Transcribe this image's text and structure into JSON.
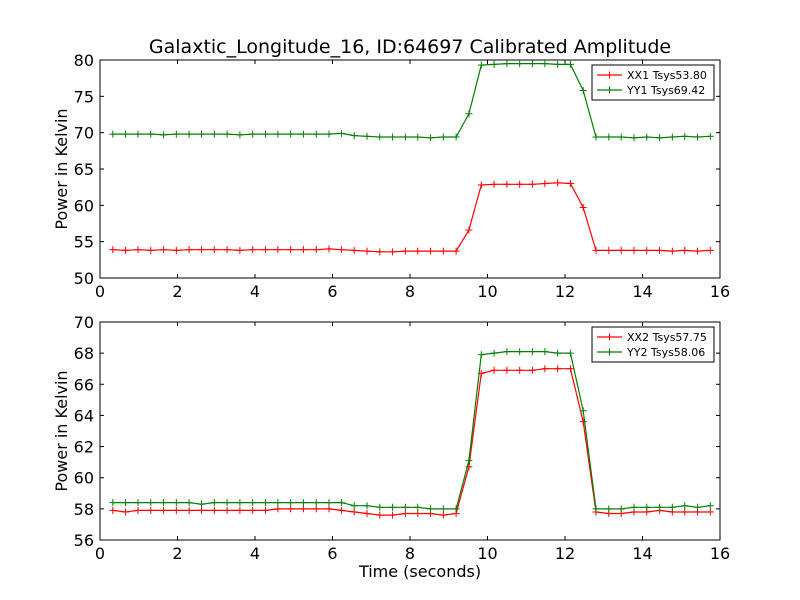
{
  "title": "Galaxtic_Longitude_16, ID:64697 Calibrated Amplitude",
  "colors": {
    "red": "#ff0000",
    "green": "#008000",
    "frame": "#000000"
  },
  "chart_data": [
    {
      "type": "line",
      "title": "Galaxtic_Longitude_16, ID:64697 Calibrated Amplitude",
      "xlabel": "",
      "ylabel": "Power in Kelvin",
      "xlim": [
        0,
        16
      ],
      "ylim": [
        50,
        80
      ],
      "xticks": [
        "0",
        "2",
        "4",
        "6",
        "8",
        "10",
        "12",
        "14",
        "16"
      ],
      "yticks": [
        "50",
        "55",
        "60",
        "65",
        "70",
        "75",
        "80"
      ],
      "grid": false,
      "legend_position": "top-right",
      "x": [
        0.33,
        0.66,
        0.98,
        1.31,
        1.64,
        1.97,
        2.3,
        2.62,
        2.95,
        3.28,
        3.61,
        3.94,
        4.27,
        4.59,
        4.92,
        5.25,
        5.58,
        5.91,
        6.23,
        6.56,
        6.89,
        7.22,
        7.55,
        7.88,
        8.2,
        8.53,
        8.86,
        9.19,
        9.52,
        9.84,
        10.17,
        10.5,
        10.83,
        11.16,
        11.48,
        11.81,
        12.14,
        12.47,
        12.8,
        13.13,
        13.45,
        13.78,
        14.11,
        14.44,
        14.77,
        15.09,
        15.42,
        15.75
      ],
      "series": [
        {
          "name": "XX1 Tsys53.80",
          "color": "#ff0000",
          "values": [
            53.9,
            53.8,
            53.9,
            53.8,
            53.9,
            53.8,
            53.9,
            53.9,
            53.9,
            53.9,
            53.8,
            53.9,
            53.9,
            53.9,
            53.9,
            53.9,
            53.9,
            54.0,
            53.9,
            53.8,
            53.7,
            53.6,
            53.6,
            53.7,
            53.7,
            53.7,
            53.7,
            53.7,
            56.6,
            62.8,
            62.9,
            62.9,
            62.9,
            62.9,
            63.0,
            63.1,
            63.0,
            59.7,
            53.8,
            53.8,
            53.8,
            53.8,
            53.8,
            53.8,
            53.7,
            53.8,
            53.7,
            53.8
          ]
        },
        {
          "name": "YY1 Tsys69.42",
          "color": "#008000",
          "values": [
            69.8,
            69.8,
            69.8,
            69.8,
            69.7,
            69.8,
            69.8,
            69.8,
            69.8,
            69.8,
            69.7,
            69.8,
            69.8,
            69.8,
            69.8,
            69.8,
            69.8,
            69.8,
            69.9,
            69.6,
            69.5,
            69.4,
            69.4,
            69.4,
            69.4,
            69.3,
            69.4,
            69.4,
            72.6,
            79.3,
            79.4,
            79.5,
            79.5,
            79.5,
            79.5,
            79.4,
            79.4,
            75.8,
            69.4,
            69.4,
            69.4,
            69.3,
            69.4,
            69.3,
            69.4,
            69.5,
            69.4,
            69.5
          ]
        }
      ]
    },
    {
      "type": "line",
      "title": "",
      "xlabel": "Time (seconds)",
      "ylabel": "Power in Kelvin",
      "xlim": [
        0,
        16
      ],
      "ylim": [
        56,
        70
      ],
      "xticks": [
        "0",
        "2",
        "4",
        "6",
        "8",
        "10",
        "12",
        "14",
        "16"
      ],
      "yticks": [
        "56",
        "58",
        "60",
        "62",
        "64",
        "66",
        "68",
        "70"
      ],
      "grid": false,
      "legend_position": "top-right",
      "x": [
        0.33,
        0.66,
        0.98,
        1.31,
        1.64,
        1.97,
        2.3,
        2.62,
        2.95,
        3.28,
        3.61,
        3.94,
        4.27,
        4.59,
        4.92,
        5.25,
        5.58,
        5.91,
        6.23,
        6.56,
        6.89,
        7.22,
        7.55,
        7.88,
        8.2,
        8.53,
        8.86,
        9.19,
        9.52,
        9.84,
        10.17,
        10.5,
        10.83,
        11.16,
        11.48,
        11.81,
        12.14,
        12.47,
        12.8,
        13.13,
        13.45,
        13.78,
        14.11,
        14.44,
        14.77,
        15.09,
        15.42,
        15.75
      ],
      "series": [
        {
          "name": "XX2 Tsys57.75",
          "color": "#ff0000",
          "values": [
            57.9,
            57.8,
            57.9,
            57.9,
            57.9,
            57.9,
            57.9,
            57.9,
            57.9,
            57.9,
            57.9,
            57.9,
            57.9,
            58.0,
            58.0,
            58.0,
            58.0,
            58.0,
            57.9,
            57.8,
            57.7,
            57.6,
            57.6,
            57.7,
            57.7,
            57.7,
            57.6,
            57.7,
            60.7,
            66.7,
            66.9,
            66.9,
            66.9,
            66.9,
            67.0,
            67.0,
            67.0,
            63.6,
            57.8,
            57.7,
            57.7,
            57.8,
            57.8,
            57.9,
            57.8,
            57.8,
            57.8,
            57.8
          ]
        },
        {
          "name": "YY2 Tsys58.06",
          "color": "#008000",
          "values": [
            58.4,
            58.4,
            58.4,
            58.4,
            58.4,
            58.4,
            58.4,
            58.3,
            58.4,
            58.4,
            58.4,
            58.4,
            58.4,
            58.4,
            58.4,
            58.4,
            58.4,
            58.4,
            58.4,
            58.2,
            58.2,
            58.1,
            58.1,
            58.1,
            58.1,
            58.0,
            58.0,
            58.0,
            61.1,
            67.9,
            68.0,
            68.1,
            68.1,
            68.1,
            68.1,
            68.0,
            68.0,
            64.3,
            58.0,
            58.0,
            58.0,
            58.1,
            58.1,
            58.1,
            58.1,
            58.2,
            58.1,
            58.2
          ]
        }
      ]
    }
  ]
}
